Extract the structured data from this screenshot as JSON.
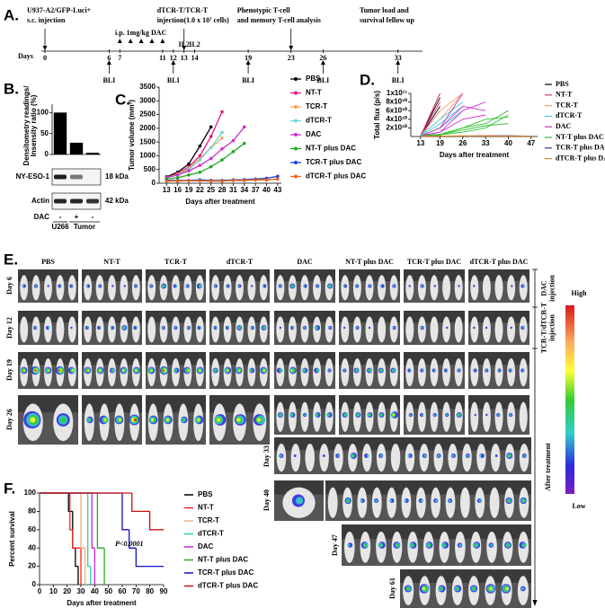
{
  "panel_labels": [
    "A.",
    "B.",
    "C.",
    "D.",
    "E.",
    "F."
  ],
  "timeline": {
    "events": [
      {
        "day": 0,
        "label": [
          "U937-A2/GFP-Luci+",
          "s.c. injection"
        ]
      },
      {
        "day": 13,
        "label": [
          "dTCR-T/TCR-T",
          "injection(1.0 x 10⁷ cells)"
        ]
      },
      {
        "day": 23,
        "label": [
          "Phenotypic T-cell",
          "and memory T-cell analysis"
        ]
      }
    ],
    "follow_up": [
      "Tumor load and",
      "survival fellow up"
    ],
    "axis_label": "Days",
    "ticks": [
      0,
      6,
      7,
      11,
      12,
      13,
      14,
      19,
      23,
      26,
      33
    ],
    "dac_label": "i.p. 1mg/kg DAC",
    "dac_days": [
      7,
      8,
      9,
      10,
      11
    ],
    "il2_label": "IL2",
    "il2_days": [
      13,
      14
    ],
    "bli_label": "BLI",
    "bli_days": [
      6,
      12,
      19,
      26,
      33
    ]
  },
  "photos": {
    "groups_left": [
      "PBS",
      "NT-T",
      "TCR-T",
      "dTCR-T"
    ],
    "groups_right": [
      "DAC",
      "NT-T plus DAC",
      "TCR-T plus DAC",
      "dTCR-T plus DAC"
    ],
    "days": [
      "Day 6",
      "Day 12",
      "Day 19",
      "Day 26",
      "Day 33",
      "Day 40",
      "Day 47",
      "Day 61"
    ],
    "phases": [
      [
        "DAC",
        "injection"
      ],
      [
        "TCR-T/dTCR-T",
        "injection"
      ],
      [
        "After treatment"
      ]
    ],
    "scale": [
      "High",
      "Low"
    ]
  },
  "chart_data": [
    {
      "type": "bar",
      "ylabel": [
        "Densitometry readings/",
        "Insensity ratio (%)"
      ],
      "categories": [
        "-",
        "+",
        "-"
      ],
      "values": [
        100,
        28,
        4
      ],
      "color": "#000000",
      "ylim": [
        0,
        120
      ],
      "yticks": [
        0,
        50,
        100
      ],
      "blot": {
        "rows": [
          {
            "label": "NY-ESO-1",
            "size": "18 kDa"
          },
          {
            "label": "Actin",
            "size": "42 kDa"
          }
        ],
        "row_label": "DAC",
        "groups": [
          "U266",
          "Tumor"
        ]
      }
    },
    {
      "type": "line",
      "xlabel": "Days after treatment",
      "ylabel": "Tumor volume (mm³)",
      "x": [
        13,
        16,
        19,
        22,
        25,
        28,
        31,
        34,
        37,
        40,
        43
      ],
      "xlim": [
        11,
        44
      ],
      "xticks": [
        13,
        16,
        19,
        22,
        25,
        28,
        31,
        34,
        37,
        40,
        43
      ],
      "ylim": [
        0,
        3500
      ],
      "yticks": [
        0,
        500,
        1000,
        1500,
        2000,
        2500,
        3000,
        3500
      ],
      "series": [
        {
          "name": "PBS",
          "color": "#000000",
          "values": [
            230,
            400,
            700,
            1350,
            2050,
            null,
            null,
            null,
            null,
            null,
            null
          ]
        },
        {
          "name": "NT-T",
          "color": "#e8178a",
          "values": [
            200,
            350,
            600,
            1000,
            1700,
            2600,
            null,
            null,
            null,
            null,
            null
          ]
        },
        {
          "name": "TCR-T",
          "color": "#f4a460",
          "values": [
            200,
            330,
            550,
            900,
            1300,
            1650,
            null,
            null,
            null,
            null,
            null
          ]
        },
        {
          "name": "dTCR-T",
          "color": "#6fd6d6",
          "values": [
            200,
            300,
            500,
            850,
            1300,
            1850,
            null,
            null,
            null,
            null,
            null
          ]
        },
        {
          "name": "DAC",
          "color": "#cc33cc",
          "values": [
            200,
            300,
            450,
            650,
            900,
            1250,
            1550,
            2050,
            null,
            null,
            null
          ]
        },
        {
          "name": "NT-T  plus DAC",
          "color": "#22aa22",
          "values": [
            150,
            200,
            300,
            400,
            600,
            850,
            1150,
            1450,
            null,
            null,
            null
          ]
        },
        {
          "name": "TCR-T plus DAC",
          "color": "#1f3fcc",
          "values": [
            100,
            100,
            100,
            120,
            100,
            100,
            120,
            130,
            150,
            180,
            250
          ]
        },
        {
          "name": "dTCR-T plus DAC",
          "color": "#e8641a",
          "values": [
            80,
            80,
            90,
            90,
            80,
            80,
            100,
            100,
            120,
            120,
            150
          ]
        }
      ]
    },
    {
      "type": "spaghetti",
      "xlabel": "Days after treatment",
      "ylabel": "Total flux (p/s)",
      "x": [
        13,
        19,
        26,
        33,
        40,
        47
      ],
      "xlim": [
        10,
        49
      ],
      "xticks": [
        13,
        19,
        26,
        33,
        40,
        47
      ],
      "ylim": [
        0,
        100000000000.0
      ],
      "yticks": [
        {
          "value": 20000000000.0,
          "label": "2x10¹⁰"
        },
        {
          "value": 40000000000.0,
          "label": "4x10¹⁰"
        },
        {
          "value": 60000000000.0,
          "label": "6x10¹⁰"
        },
        {
          "value": 80000000000.0,
          "label": "8x10¹⁰"
        },
        {
          "value": 100000000000.0,
          "label": "1x10¹¹"
        }
      ],
      "series": [
        {
          "name": "PBS",
          "color": "#000000",
          "mice": [
            [
              1000000000.0,
              100000000000.0,
              null,
              null,
              null,
              null
            ],
            [
              2000000000.0,
              90000000000.0,
              null,
              null,
              null,
              null
            ],
            [
              1000000000.0,
              70000000000.0,
              null,
              null,
              null,
              null
            ]
          ]
        },
        {
          "name": "NT-T",
          "color": "#e0307a",
          "mice": [
            [
              1000000000.0,
              100000000000.0,
              null,
              null,
              null,
              null
            ],
            [
              2000000000.0,
              80000000000.0,
              null,
              null,
              null,
              null
            ],
            [
              1000000000.0,
              60000000000.0,
              null,
              null,
              null,
              null
            ]
          ]
        },
        {
          "name": "TCR-T",
          "color": "#f0a070",
          "mice": [
            [
              1000000000.0,
              60000000000.0,
              100000000000.0,
              null,
              null,
              null
            ],
            [
              2000000000.0,
              40000000000.0,
              100000000000.0,
              null,
              null,
              null
            ]
          ]
        },
        {
          "name": "dTCR-T",
          "color": "#40d0e0",
          "mice": [
            [
              1000000000.0,
              30000000000.0,
              70000000000.0,
              null,
              null,
              null
            ],
            [
              1000000000.0,
              20000000000.0,
              60000000000.0,
              null,
              null,
              null
            ],
            [
              2000000000.0,
              40000000000.0,
              80000000000.0,
              null,
              null,
              null
            ]
          ]
        },
        {
          "name": "DAC",
          "color": "#cc33cc",
          "mice": [
            [
              1000000000.0,
              20000000000.0,
              100000000000.0,
              null,
              null,
              null
            ],
            [
              1000000000.0,
              10000000000.0,
              60000000000.0,
              80000000000.0,
              null,
              null
            ],
            [
              2000000000.0,
              10000000000.0,
              40000000000.0,
              50000000000.0,
              null,
              null
            ],
            [
              1000000000.0,
              20000000000.0,
              70000000000.0,
              60000000000.0,
              null,
              null
            ]
          ]
        },
        {
          "name": "NT-T  plus DAC",
          "color": "#2fbf2f",
          "mice": [
            [
              1000000000.0,
              5000000000.0,
              20000000000.0,
              30000000000.0,
              60000000000.0,
              null
            ],
            [
              1000000000.0,
              4000000000.0,
              10000000000.0,
              20000000000.0,
              50000000000.0,
              null
            ],
            [
              2000000000.0,
              5000000000.0,
              15000000000.0,
              25000000000.0,
              30000000000.0,
              null
            ],
            [
              1000000000.0,
              3000000000.0,
              20000000000.0,
              40000000000.0,
              45000000000.0,
              null
            ]
          ]
        },
        {
          "name": "TCR-T plus DAC",
          "color": "#3333aa",
          "mice": [
            [
              1000000000.0,
              1000000000.0,
              1000000000.0,
              2000000000.0,
              2000000000.0,
              1000000000.0
            ],
            [
              500000000.0,
              1000000000.0,
              1000000000.0,
              1000000000.0,
              1000000000.0,
              1000000000.0
            ]
          ]
        },
        {
          "name": "dTCR-T plus DAC",
          "color": "#e08020",
          "mice": [
            [
              1000000000.0,
              1000000000.0,
              2000000000.0,
              1000000000.0,
              1000000000.0,
              1000000000.0
            ],
            [
              500000000.0,
              1000000000.0,
              1000000000.0,
              2000000000.0,
              1000000000.0,
              500000000.0
            ]
          ]
        }
      ]
    },
    {
      "type": "survival",
      "xlabel": "Days after treatment",
      "ylabel": "Percent survival",
      "annotation": "P<0.0001",
      "xlim": [
        0,
        90
      ],
      "xticks": [
        0,
        10,
        20,
        30,
        40,
        50,
        60,
        70,
        80,
        90
      ],
      "ylim": [
        0,
        100
      ],
      "yticks": [
        0,
        20,
        40,
        60,
        80,
        100
      ],
      "series": [
        {
          "name": "PBS",
          "color": "#000000",
          "x": [
            0,
            21,
            24,
            26,
            28
          ],
          "values": [
            100,
            80,
            40,
            20,
            0
          ]
        },
        {
          "name": "NT-T",
          "color": "#ff2020",
          "x": [
            0,
            22,
            24,
            30
          ],
          "values": [
            100,
            60,
            40,
            0
          ]
        },
        {
          "name": "TCR-T",
          "color": "#f0b080",
          "x": [
            0,
            30,
            33
          ],
          "values": [
            100,
            40,
            0
          ]
        },
        {
          "name": "dTCR-T",
          "color": "#30d0a0",
          "x": [
            0,
            35,
            37
          ],
          "values": [
            100,
            20,
            0
          ]
        },
        {
          "name": "DAC",
          "color": "#cc22cc",
          "x": [
            0,
            38,
            40
          ],
          "values": [
            100,
            40,
            0
          ]
        },
        {
          "name": "NT-T plus DAC",
          "color": "#22aa22",
          "x": [
            0,
            42,
            47
          ],
          "values": [
            100,
            40,
            0
          ]
        },
        {
          "name": "TCR-T plus DAC",
          "color": "#1010cc",
          "x": [
            0,
            60,
            65,
            70,
            90
          ],
          "values": [
            100,
            60,
            40,
            20,
            20
          ]
        },
        {
          "name": "dTCR-T plus DAC",
          "color": "#cc1010",
          "x": [
            0,
            67,
            80,
            90
          ],
          "values": [
            100,
            80,
            60,
            60
          ]
        }
      ]
    }
  ]
}
